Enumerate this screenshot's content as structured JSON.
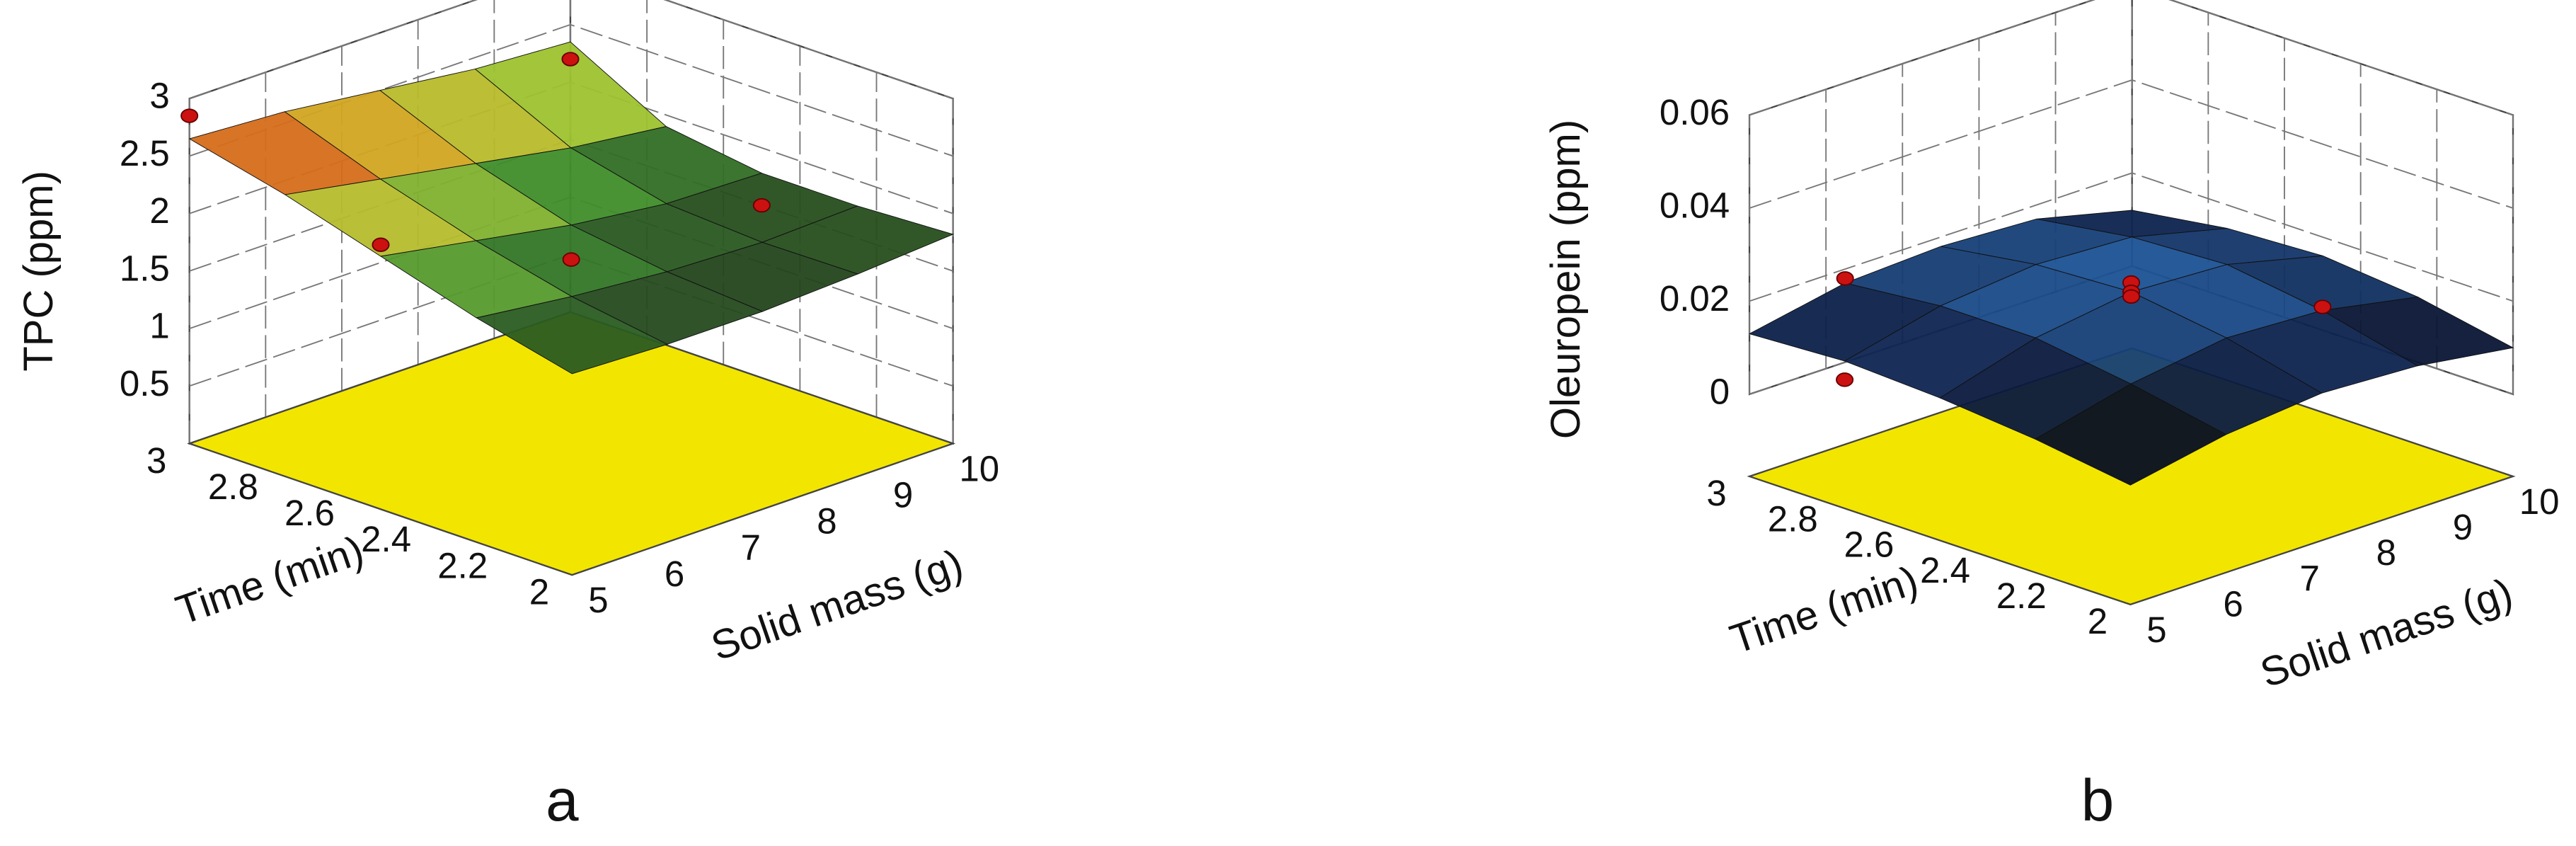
{
  "chart_data": [
    {
      "type": "surface3d",
      "panel_label": "a",
      "x_label": "Solid mass (g)",
      "y_label": "Time (min)",
      "z_label": "TPC (ppm)",
      "x": [
        5,
        6.25,
        7.5,
        8.75,
        10
      ],
      "y": [
        2,
        2.25,
        2.5,
        2.75,
        3
      ],
      "z": [
        [
          1.75,
          1.72,
          1.72,
          1.76,
          1.82
        ],
        [
          1.95,
          1.85,
          1.78,
          1.75,
          1.78
        ],
        [
          2.2,
          2.05,
          1.9,
          1.8,
          1.78
        ],
        [
          2.45,
          2.3,
          2.15,
          2.0,
          1.9
        ],
        [
          2.65,
          2.6,
          2.5,
          2.4,
          2.35
        ]
      ],
      "xlim": [
        5,
        10
      ],
      "ylim": [
        2,
        3
      ],
      "zlim": [
        0,
        3
      ],
      "xticks": [
        5,
        6,
        7,
        8,
        9,
        10
      ],
      "yticks": [
        2,
        2.2,
        2.4,
        2.6,
        2.8,
        3
      ],
      "zticks": [
        0.5,
        1,
        1.5,
        2,
        2.5,
        3
      ],
      "colormap": [
        "#1f3a1a",
        "#3a8a2a",
        "#a8c830",
        "#d8a020",
        "#d01010"
      ],
      "floor_color": "#f2e600",
      "points": {
        "x": [
          5,
          5,
          10,
          7.5,
          10
        ],
        "y": [
          3,
          2.5,
          3,
          2.5,
          2.5
        ],
        "z": [
          2.85,
          2.3,
          2.2,
          1.6,
          1.5
        ]
      },
      "point_color": "#cc1111"
    },
    {
      "type": "surface3d",
      "panel_label": "b",
      "x_label": "Solid mass (g)",
      "y_label": "Time (min)",
      "z_label": "Oleuropein (ppm)",
      "x": [
        5,
        6.25,
        7.5,
        8.75,
        10
      ],
      "y": [
        2,
        2.25,
        2.5,
        2.75,
        3
      ],
      "z": [
        [
          0.008,
          0.012,
          0.014,
          0.013,
          0.01
        ],
        [
          0.011,
          0.016,
          0.019,
          0.018,
          0.014
        ],
        [
          0.013,
          0.019,
          0.022,
          0.021,
          0.016
        ],
        [
          0.014,
          0.019,
          0.021,
          0.02,
          0.015
        ],
        [
          0.013,
          0.017,
          0.018,
          0.017,
          0.012
        ]
      ],
      "xlim": [
        5,
        10
      ],
      "ylim": [
        2,
        3
      ],
      "zlim": [
        0,
        0.06
      ],
      "xticks": [
        5,
        6,
        7,
        8,
        9,
        10
      ],
      "yticks": [
        2,
        2.2,
        2.4,
        2.6,
        2.8,
        3
      ],
      "zticks": [
        0,
        0.02,
        0.04,
        0.06
      ],
      "colormap": [
        "#000000",
        "#0a1a40",
        "#1e5aa0"
      ],
      "floor_color": "#f2e600",
      "points": {
        "x": [
          7.5,
          7.5,
          7.5,
          6.25,
          5,
          10
        ],
        "y": [
          2.5,
          2.5,
          2.5,
          3,
          2.75,
          2.5
        ],
        "z": [
          0.024,
          0.022,
          0.021,
          0.018,
          0.01,
          0.005
        ]
      },
      "point_color": "#cc1111"
    }
  ]
}
